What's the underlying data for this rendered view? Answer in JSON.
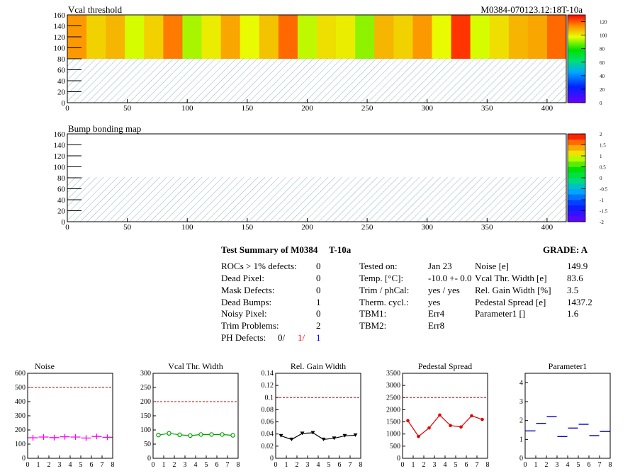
{
  "header": {
    "map1_title": "Vcal threshold",
    "module_id": "M0384-070123.12:18T-10a",
    "map2_title": "Bump bonding map"
  },
  "colors": {
    "noise": "#ff00ff",
    "vcal": "#00a000",
    "gain": "#000000",
    "pedestal": "#e00000",
    "param": "#0000cc",
    "limit_line": "#cc0000",
    "ph_red": "#ff0000",
    "ph_blue": "#0000ff"
  },
  "summary": {
    "title": "Test Summary of M0384",
    "temp_label": "T-10a",
    "grade_label": "GRADE:  A",
    "rocs_label": "ROCs > 1% defects:",
    "rocs_value": "0",
    "dead_label": "Dead Pixel:",
    "dead_value": "0",
    "mask_label": "Mask Defects:",
    "mask_value": "0",
    "bumps_label": "Dead Bumps:",
    "bumps_value": "1",
    "noisy_label": "Noisy Pixel:",
    "noisy_value": "0",
    "trim_label": "Trim Problems:",
    "trim_value": "2",
    "ph_label": "PH Defects:",
    "ph_v1": "0/",
    "ph_v2": "1/",
    "ph_v3": "1",
    "tested_label": "Tested on:",
    "tested_value": "Jan 23",
    "tempc_label": "Temp. [°C]:",
    "tempc_value": "-10.0 +- 0.0",
    "trimph_label": "Trim / phCal:",
    "trimph_value": "yes / yes",
    "therm_label": "Therm. cycl.:",
    "therm_value": "yes",
    "tbm1_label": "TBM1:",
    "tbm1_value": "Err4",
    "tbm2_label": "TBM2:",
    "tbm2_value": "Err8",
    "noise_label": "Noise [e]",
    "noise_value": "149.9",
    "vcalw_label": "Vcal Thr. Width [e]",
    "vcalw_value": "83.6",
    "gainw_label": "Rel. Gain Width [%]",
    "gainw_value": "3.5",
    "peds_label": "Pedestal Spread [e]",
    "peds_value": "1437.2",
    "par1_label": "Parameter1 []",
    "par1_value": "1.6"
  },
  "chart_data": [
    {
      "type": "heatmap",
      "title": "Vcal threshold",
      "xlim": [
        0,
        416
      ],
      "ylim": [
        0,
        160
      ],
      "x_ticks": [
        0,
        50,
        100,
        150,
        200,
        250,
        300,
        350,
        400
      ],
      "y_ticks": [
        0,
        20,
        40,
        60,
        80,
        100,
        120,
        140,
        160
      ],
      "filled_rows": [
        80,
        160
      ],
      "roc_mean_levels": [
        112,
        104,
        108,
        96,
        104,
        116,
        92,
        100,
        110,
        98,
        106,
        118,
        94,
        102,
        100,
        90,
        108,
        104,
        112,
        98,
        124,
        96,
        102,
        108,
        110,
        118
      ],
      "palette_range": [
        0,
        130
      ],
      "palette_ticks": [
        0,
        20,
        40,
        60,
        80,
        100,
        120
      ]
    },
    {
      "type": "heatmap",
      "title": "Bump bonding map",
      "xlim": [
        0,
        416
      ],
      "ylim": [
        0,
        160
      ],
      "x_ticks": [
        0,
        50,
        100,
        150,
        200,
        250,
        300,
        350,
        400
      ],
      "y_ticks": [
        0,
        20,
        40,
        60,
        80,
        100,
        120,
        140,
        160
      ],
      "palette_range": [
        -2,
        2
      ],
      "palette_ticks": [
        -2,
        -1.5,
        -1,
        -0.5,
        0,
        0.5,
        1,
        1.5,
        2
      ]
    },
    {
      "type": "line",
      "title": "Noise",
      "x": [
        0.5,
        1.5,
        2.5,
        3.5,
        4.5,
        5.5,
        6.5,
        7.5
      ],
      "y": [
        145,
        150,
        146,
        152,
        150,
        143,
        154,
        148
      ],
      "ylim": [
        0,
        600
      ],
      "xlim": [
        0,
        8
      ],
      "limit": 500,
      "y_ticks": [
        0,
        100,
        200,
        300,
        400,
        500,
        600
      ],
      "marker": "cross",
      "line": false,
      "color": "#ff00ff"
    },
    {
      "type": "line",
      "title": "Vcal Thr. Width",
      "x": [
        0.5,
        1.5,
        2.5,
        3.5,
        4.5,
        5.5,
        6.5,
        7.5
      ],
      "y": [
        82,
        88,
        83,
        80,
        84,
        84,
        84,
        81
      ],
      "ylim": [
        0,
        300
      ],
      "xlim": [
        0,
        8
      ],
      "limit": 200,
      "y_ticks": [
        0,
        50,
        100,
        150,
        200,
        250,
        300
      ],
      "marker": "circle",
      "line": true,
      "color": "#00a000"
    },
    {
      "type": "line",
      "title": "Rel. Gain Width",
      "x": [
        0.5,
        1.5,
        2.5,
        3.5,
        4.5,
        5.5,
        6.5,
        7.5
      ],
      "y": [
        0.037,
        0.031,
        0.041,
        0.042,
        0.031,
        0.033,
        0.037,
        0.038
      ],
      "ylim": [
        0,
        0.14
      ],
      "xlim": [
        0,
        8
      ],
      "limit": 0.1,
      "y_ticks": [
        0,
        0.02,
        0.04,
        0.06,
        0.08,
        0.1,
        0.12,
        0.14
      ],
      "marker": "triangle",
      "line": true,
      "color": "#000000"
    },
    {
      "type": "line",
      "title": "Pedestal Spread",
      "x": [
        0.5,
        1.5,
        2.5,
        3.5,
        4.5,
        5.5,
        6.5,
        7.5
      ],
      "y": [
        1550,
        900,
        1250,
        1780,
        1350,
        1290,
        1750,
        1600
      ],
      "ylim": [
        0,
        3500
      ],
      "xlim": [
        0,
        8
      ],
      "limit": 2500,
      "y_ticks": [
        0,
        500,
        1000,
        1500,
        2000,
        2500,
        3000,
        3500
      ],
      "marker": "star",
      "line": true,
      "color": "#e00000"
    },
    {
      "type": "scatter",
      "title": "Parameter1",
      "x": [
        0.5,
        1.5,
        2.5,
        3.5,
        4.5,
        5.5,
        6.5,
        7.5
      ],
      "y": [
        1.45,
        1.85,
        2.2,
        1.15,
        1.6,
        1.8,
        1.2,
        1.42
      ],
      "ylim": [
        0,
        4.5
      ],
      "xlim": [
        0,
        8
      ],
      "y_ticks": [
        0,
        1,
        2,
        3,
        4
      ],
      "marker": "hbar",
      "line": false,
      "color": "#0000cc"
    }
  ]
}
